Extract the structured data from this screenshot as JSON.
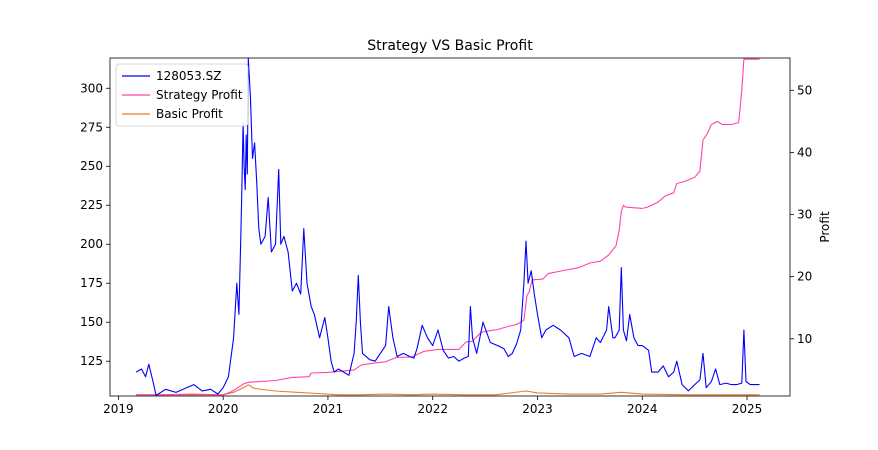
{
  "chart_data": {
    "type": "line",
    "title": "Strategy VS Basic Profit",
    "xlabel": "",
    "ylabel_left": "",
    "ylabel_right": "Profit",
    "x_ticks": [
      "2019",
      "2020",
      "2021",
      "2022",
      "2023",
      "2024",
      "2025"
    ],
    "x_range": [
      2018.92,
      2025.41
    ],
    "y_left_ticks": [
      125,
      150,
      175,
      200,
      225,
      250,
      275,
      300
    ],
    "y_left_range": [
      102.7,
      319.4
    ],
    "y_right_ticks": [
      10,
      20,
      30,
      40,
      50
    ],
    "y_right_range": [
      0.8,
      55.2
    ],
    "grid": false,
    "legend_position": "upper-left",
    "series": [
      {
        "name": "128053.SZ",
        "axis": "left",
        "color": "#0000ff",
        "points": [
          [
            2019.17,
            118
          ],
          [
            2019.22,
            120
          ],
          [
            2019.26,
            115
          ],
          [
            2019.29,
            123
          ],
          [
            2019.33,
            112
          ],
          [
            2019.36,
            103
          ],
          [
            2019.45,
            107
          ],
          [
            2019.55,
            105
          ],
          [
            2019.65,
            108
          ],
          [
            2019.72,
            110
          ],
          [
            2019.8,
            106
          ],
          [
            2019.88,
            107
          ],
          [
            2019.95,
            104
          ],
          [
            2020.0,
            108
          ],
          [
            2020.05,
            115
          ],
          [
            2020.1,
            140
          ],
          [
            2020.13,
            175
          ],
          [
            2020.15,
            155
          ],
          [
            2020.17,
            210
          ],
          [
            2020.18,
            240
          ],
          [
            2020.19,
            278
          ],
          [
            2020.2,
            250
          ],
          [
            2020.21,
            235
          ],
          [
            2020.22,
            270
          ],
          [
            2020.23,
            245
          ],
          [
            2020.24,
            319
          ],
          [
            2020.26,
            295
          ],
          [
            2020.28,
            255
          ],
          [
            2020.3,
            265
          ],
          [
            2020.32,
            240
          ],
          [
            2020.34,
            210
          ],
          [
            2020.36,
            200
          ],
          [
            2020.4,
            205
          ],
          [
            2020.43,
            230
          ],
          [
            2020.46,
            195
          ],
          [
            2020.5,
            200
          ],
          [
            2020.53,
            248
          ],
          [
            2020.55,
            200
          ],
          [
            2020.58,
            205
          ],
          [
            2020.62,
            195
          ],
          [
            2020.66,
            170
          ],
          [
            2020.7,
            175
          ],
          [
            2020.74,
            168
          ],
          [
            2020.77,
            210
          ],
          [
            2020.8,
            175
          ],
          [
            2020.84,
            160
          ],
          [
            2020.87,
            155
          ],
          [
            2020.92,
            140
          ],
          [
            2020.97,
            153
          ],
          [
            2021.0,
            140
          ],
          [
            2021.03,
            125
          ],
          [
            2021.06,
            118
          ],
          [
            2021.1,
            120
          ],
          [
            2021.15,
            118
          ],
          [
            2021.2,
            116
          ],
          [
            2021.25,
            130
          ],
          [
            2021.27,
            150
          ],
          [
            2021.29,
            180
          ],
          [
            2021.31,
            150
          ],
          [
            2021.33,
            130
          ],
          [
            2021.4,
            126
          ],
          [
            2021.45,
            125
          ],
          [
            2021.5,
            130
          ],
          [
            2021.55,
            135
          ],
          [
            2021.58,
            160
          ],
          [
            2021.62,
            140
          ],
          [
            2021.66,
            128
          ],
          [
            2021.72,
            130
          ],
          [
            2021.78,
            128
          ],
          [
            2021.82,
            127
          ],
          [
            2021.85,
            133
          ],
          [
            2021.9,
            148
          ],
          [
            2021.95,
            140
          ],
          [
            2022.0,
            135
          ],
          [
            2022.05,
            145
          ],
          [
            2022.1,
            132
          ],
          [
            2022.15,
            127
          ],
          [
            2022.2,
            128
          ],
          [
            2022.25,
            125
          ],
          [
            2022.3,
            127
          ],
          [
            2022.34,
            128
          ],
          [
            2022.36,
            160
          ],
          [
            2022.38,
            140
          ],
          [
            2022.42,
            130
          ],
          [
            2022.48,
            150
          ],
          [
            2022.55,
            137
          ],
          [
            2022.62,
            135
          ],
          [
            2022.68,
            133
          ],
          [
            2022.72,
            128
          ],
          [
            2022.76,
            130
          ],
          [
            2022.8,
            136
          ],
          [
            2022.84,
            145
          ],
          [
            2022.87,
            175
          ],
          [
            2022.89,
            202
          ],
          [
            2022.91,
            175
          ],
          [
            2022.94,
            183
          ],
          [
            2022.97,
            168
          ],
          [
            2023.0,
            155
          ],
          [
            2023.04,
            140
          ],
          [
            2023.08,
            145
          ],
          [
            2023.15,
            148
          ],
          [
            2023.22,
            145
          ],
          [
            2023.3,
            140
          ],
          [
            2023.35,
            128
          ],
          [
            2023.42,
            130
          ],
          [
            2023.5,
            128
          ],
          [
            2023.56,
            140
          ],
          [
            2023.6,
            137
          ],
          [
            2023.66,
            145
          ],
          [
            2023.68,
            160
          ],
          [
            2023.72,
            140
          ],
          [
            2023.74,
            140
          ],
          [
            2023.78,
            145
          ],
          [
            2023.8,
            185
          ],
          [
            2023.82,
            145
          ],
          [
            2023.85,
            138
          ],
          [
            2023.88,
            155
          ],
          [
            2023.92,
            140
          ],
          [
            2023.96,
            135
          ],
          [
            2024.0,
            135
          ],
          [
            2024.06,
            132
          ],
          [
            2024.09,
            118
          ],
          [
            2024.15,
            118
          ],
          [
            2024.2,
            122
          ],
          [
            2024.25,
            115
          ],
          [
            2024.3,
            118
          ],
          [
            2024.33,
            125
          ],
          [
            2024.38,
            110
          ],
          [
            2024.44,
            106
          ],
          [
            2024.5,
            110
          ],
          [
            2024.55,
            113
          ],
          [
            2024.58,
            130
          ],
          [
            2024.61,
            108
          ],
          [
            2024.66,
            112
          ],
          [
            2024.7,
            120
          ],
          [
            2024.74,
            110
          ],
          [
            2024.8,
            111
          ],
          [
            2024.85,
            110
          ],
          [
            2024.9,
            110
          ],
          [
            2024.95,
            111
          ],
          [
            2024.97,
            145
          ],
          [
            2024.99,
            112
          ],
          [
            2025.03,
            110
          ],
          [
            2025.12,
            110
          ]
        ]
      },
      {
        "name": "Strategy Profit",
        "axis": "right",
        "color": "#ff44aa",
        "points": [
          [
            2019.17,
            1.0
          ],
          [
            2020.0,
            1.0
          ],
          [
            2020.08,
            1.5
          ],
          [
            2020.2,
            2.8
          ],
          [
            2020.24,
            3.0
          ],
          [
            2020.5,
            3.3
          ],
          [
            2020.66,
            3.8
          ],
          [
            2020.82,
            3.9
          ],
          [
            2020.84,
            4.5
          ],
          [
            2021.0,
            4.6
          ],
          [
            2021.25,
            5.0
          ],
          [
            2021.32,
            5.8
          ],
          [
            2021.4,
            6.0
          ],
          [
            2021.55,
            6.3
          ],
          [
            2021.65,
            7.0
          ],
          [
            2021.8,
            7.1
          ],
          [
            2021.92,
            8.0
          ],
          [
            2022.05,
            8.3
          ],
          [
            2022.25,
            8.3
          ],
          [
            2022.32,
            9.5
          ],
          [
            2022.38,
            9.6
          ],
          [
            2022.4,
            10.0
          ],
          [
            2022.46,
            11.0
          ],
          [
            2022.5,
            11.2
          ],
          [
            2022.62,
            11.5
          ],
          [
            2022.72,
            12.0
          ],
          [
            2022.8,
            12.3
          ],
          [
            2022.87,
            13.0
          ],
          [
            2022.9,
            17.0
          ],
          [
            2022.92,
            17.5
          ],
          [
            2022.95,
            19.5
          ],
          [
            2023.05,
            19.6
          ],
          [
            2023.1,
            20.5
          ],
          [
            2023.25,
            21.0
          ],
          [
            2023.4,
            21.5
          ],
          [
            2023.5,
            22.2
          ],
          [
            2023.6,
            22.5
          ],
          [
            2023.68,
            23.5
          ],
          [
            2023.75,
            25.0
          ],
          [
            2023.78,
            27.5
          ],
          [
            2023.8,
            30.5
          ],
          [
            2023.82,
            31.5
          ],
          [
            2023.84,
            31.2
          ],
          [
            2024.0,
            31.0
          ],
          [
            2024.05,
            31.2
          ],
          [
            2024.15,
            32.0
          ],
          [
            2024.22,
            33.0
          ],
          [
            2024.3,
            33.5
          ],
          [
            2024.33,
            35.0
          ],
          [
            2024.4,
            35.3
          ],
          [
            2024.5,
            36.0
          ],
          [
            2024.55,
            37.0
          ],
          [
            2024.58,
            42.0
          ],
          [
            2024.62,
            43.0
          ],
          [
            2024.66,
            44.5
          ],
          [
            2024.72,
            45.0
          ],
          [
            2024.76,
            44.5
          ],
          [
            2024.85,
            44.5
          ],
          [
            2024.92,
            44.8
          ],
          [
            2024.95,
            50.0
          ],
          [
            2024.97,
            55.0
          ],
          [
            2025.12,
            55.0
          ]
        ]
      },
      {
        "name": "Basic Profit",
        "axis": "right",
        "color": "#e87d2a",
        "points": [
          [
            2019.17,
            1.0
          ],
          [
            2019.4,
            1.0
          ],
          [
            2019.7,
            1.1
          ],
          [
            2020.0,
            1.0
          ],
          [
            2020.1,
            1.4
          ],
          [
            2020.2,
            2.2
          ],
          [
            2020.24,
            2.6
          ],
          [
            2020.3,
            2.0
          ],
          [
            2020.5,
            1.6
          ],
          [
            2020.7,
            1.4
          ],
          [
            2020.9,
            1.2
          ],
          [
            2021.1,
            1.0
          ],
          [
            2021.3,
            1.0
          ],
          [
            2021.55,
            1.1
          ],
          [
            2021.8,
            1.0
          ],
          [
            2022.0,
            1.1
          ],
          [
            2022.3,
            1.0
          ],
          [
            2022.6,
            1.0
          ],
          [
            2022.89,
            1.6
          ],
          [
            2023.0,
            1.3
          ],
          [
            2023.3,
            1.1
          ],
          [
            2023.6,
            1.1
          ],
          [
            2023.8,
            1.4
          ],
          [
            2024.0,
            1.1
          ],
          [
            2024.4,
            1.0
          ],
          [
            2024.8,
            1.0
          ],
          [
            2025.12,
            1.0
          ]
        ]
      }
    ]
  }
}
